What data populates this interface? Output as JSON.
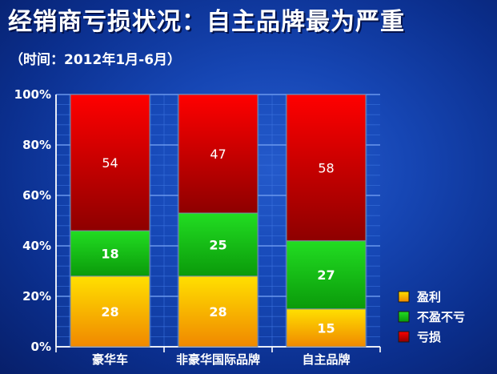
{
  "header": {
    "title": "经销商亏损状况：自主品牌最为严重",
    "subtitle": "（时间：2012年1月-6月）"
  },
  "chart_data": {
    "type": "bar",
    "stacked": true,
    "normalized": true,
    "categories": [
      "豪华车",
      "非豪华国际品牌",
      "自主品牌"
    ],
    "series": [
      {
        "name": "盈利",
        "values": [
          28,
          28,
          15
        ],
        "color": "#f0b000"
      },
      {
        "name": "不盈不亏",
        "values": [
          18,
          25,
          27
        ],
        "color": "#12b612"
      },
      {
        "name": "亏损",
        "values": [
          54,
          47,
          58
        ],
        "color": "#cc0000"
      }
    ],
    "ylim": [
      0,
      100
    ],
    "y_ticks": [
      "0%",
      "20%",
      "40%",
      "60%",
      "80%",
      "100%"
    ],
    "grid": true,
    "legend_position": "bottom-right"
  }
}
